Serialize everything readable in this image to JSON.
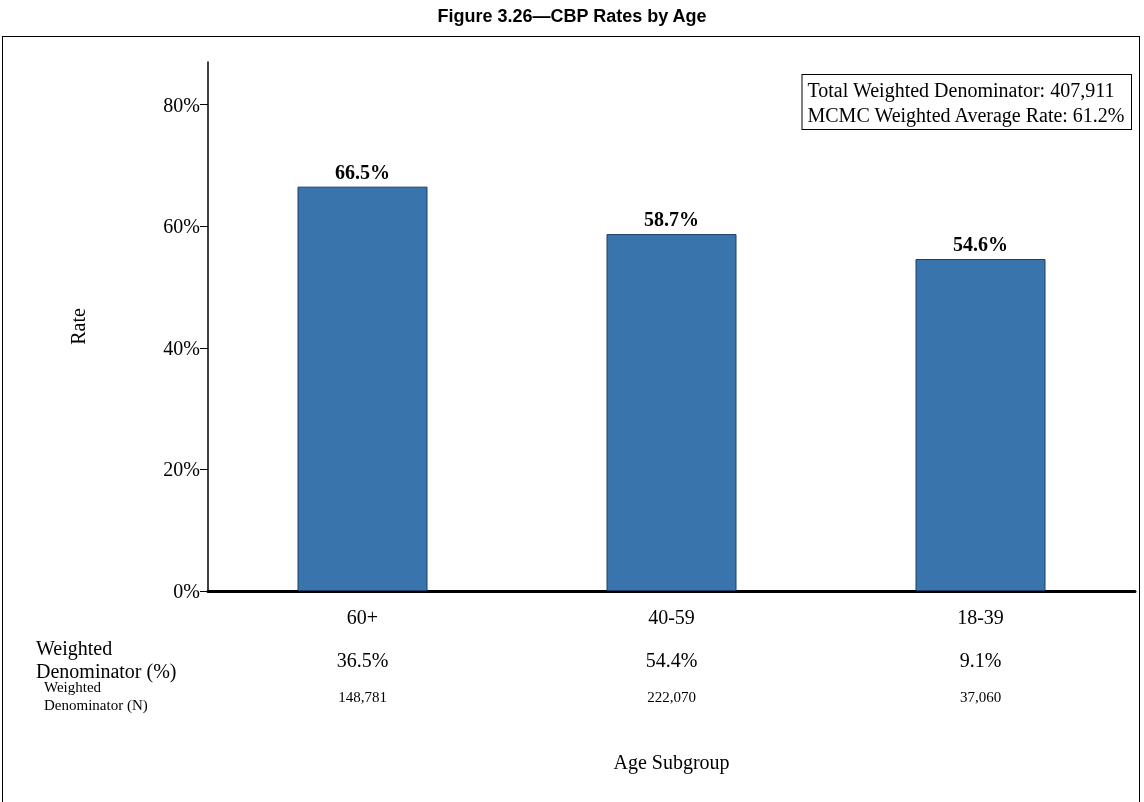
{
  "chart_data": {
    "type": "bar",
    "title": "Figure 3.26—CBP Rates by Age",
    "ylabel": "Rate",
    "categories": [
      "60+",
      "40-59",
      "18-39"
    ],
    "values": [
      66.5,
      58.7,
      54.6
    ],
    "value_labels": [
      "66.5%",
      "58.7%",
      "54.6%"
    ],
    "color": "#3a74ad",
    "ylim": [
      0,
      87
    ],
    "yticks": [
      {
        "value": 0,
        "label": "0%"
      },
      {
        "value": 20,
        "label": "20%"
      },
      {
        "value": 40,
        "label": "40%"
      },
      {
        "value": 60,
        "label": "60%"
      },
      {
        "value": 80,
        "label": "80%"
      }
    ],
    "grid": false,
    "annotations": [
      "Total Weighted Denominator: 407,911",
      "MCMC Weighted Average Rate: 61.2%",
      "Weighted Denominator (%)",
      "36.5%",
      "54.4%",
      "9.1%",
      "Weighted Denominator (N)",
      "148,781",
      "222,070",
      "37,060",
      "Age Subgroup"
    ]
  }
}
